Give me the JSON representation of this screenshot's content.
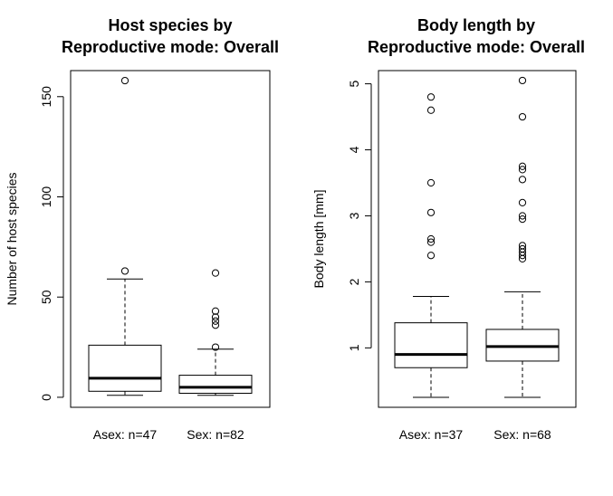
{
  "chart_data": [
    {
      "type": "boxplot",
      "title": "Host species by\nReproductive mode: Overall",
      "xlabel": "",
      "ylabel": "Number of host species",
      "ylim": [
        -5,
        163
      ],
      "yticks": [
        0,
        50,
        100,
        150
      ],
      "categories": [
        "Asex: n=47",
        "Sex: n=82"
      ],
      "boxes": [
        {
          "whisker_low": 1,
          "q1": 3,
          "median": 9.5,
          "q3": 26,
          "whisker_high": 59,
          "outliers": [
            63,
            158
          ]
        },
        {
          "whisker_low": 1,
          "q1": 2,
          "median": 5,
          "q3": 11,
          "whisker_high": 24,
          "outliers": [
            25,
            36,
            38,
            40,
            43,
            62
          ]
        }
      ]
    },
    {
      "type": "boxplot",
      "title": "Body length by\nReproductive mode: Overall",
      "xlabel": "",
      "ylabel": "Body length [mm]",
      "ylim": [
        0.1,
        5.2
      ],
      "yticks": [
        1,
        2,
        3,
        4,
        5
      ],
      "categories": [
        "Asex: n=37",
        "Sex: n=68"
      ],
      "boxes": [
        {
          "whisker_low": 0.25,
          "q1": 0.7,
          "median": 0.9,
          "q3": 1.38,
          "whisker_high": 1.78,
          "outliers": [
            2.4,
            2.6,
            2.65,
            3.05,
            3.5,
            4.6,
            4.8
          ]
        },
        {
          "whisker_low": 0.25,
          "q1": 0.8,
          "median": 1.02,
          "q3": 1.28,
          "whisker_high": 1.85,
          "outliers": [
            2.35,
            2.4,
            2.45,
            2.5,
            2.55,
            2.95,
            3.0,
            3.2,
            3.55,
            3.7,
            3.75,
            4.5,
            5.05
          ]
        }
      ]
    }
  ]
}
